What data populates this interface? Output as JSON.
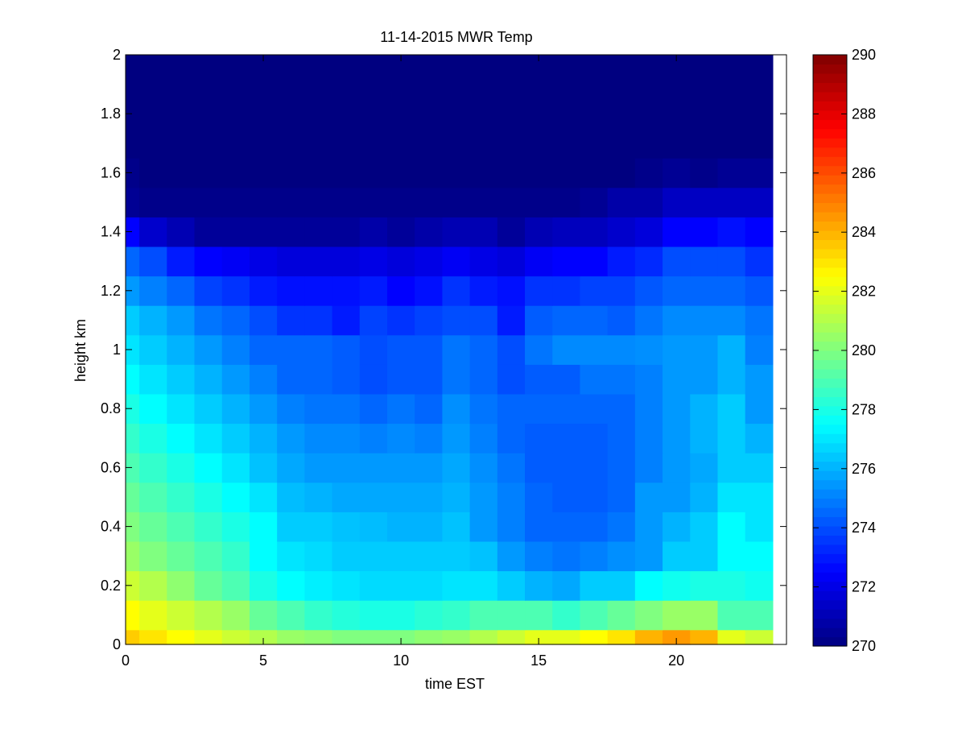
{
  "chart_data": {
    "type": "heatmap",
    "title": "11-14-2015 MWR Temp",
    "xlabel": "time EST",
    "ylabel": "height km",
    "xlim": [
      0,
      24
    ],
    "ylim": [
      0,
      2
    ],
    "x_ticks": [
      0,
      5,
      10,
      15,
      20
    ],
    "x_tick_labels": [
      "0",
      "5",
      "10",
      "15",
      "20"
    ],
    "y_ticks": [
      0,
      0.2,
      0.4,
      0.6,
      0.8,
      1,
      1.2,
      1.4,
      1.6,
      1.8,
      2
    ],
    "y_tick_labels": [
      "0",
      "0.2",
      "0.4",
      "0.6",
      "0.8",
      "1",
      "1.2",
      "1.4",
      "1.6",
      "1.8",
      "2"
    ],
    "colormap": "jet",
    "colorbar": {
      "min": 270,
      "max": 290,
      "ticks": [
        270,
        272,
        274,
        276,
        278,
        280,
        282,
        284,
        286,
        288,
        290
      ],
      "tick_labels": [
        "270",
        "272",
        "274",
        "276",
        "278",
        "280",
        "282",
        "284",
        "286",
        "288",
        "290"
      ]
    },
    "x": [
      0,
      1,
      2,
      3,
      4,
      5,
      6,
      7,
      8,
      9,
      10,
      11,
      12,
      13,
      14,
      15,
      16,
      17,
      18,
      19,
      20,
      21,
      22,
      23
    ],
    "y_centers": [
      0.025,
      0.1,
      0.2,
      0.3,
      0.4,
      0.5,
      0.6,
      0.7,
      0.8,
      0.9,
      1.0,
      1.1,
      1.2,
      1.3,
      1.4,
      1.5,
      1.6,
      1.7,
      1.8,
      1.9
    ],
    "y_edges": [
      0,
      0.05,
      0.15,
      0.25,
      0.35,
      0.45,
      0.55,
      0.65,
      0.75,
      0.85,
      0.95,
      1.05,
      1.15,
      1.25,
      1.35,
      1.45,
      1.55,
      1.65,
      1.75,
      1.85,
      2.0
    ],
    "z": [
      [
        283.5,
        283.0,
        282.5,
        282.0,
        281.5,
        281.0,
        280.5,
        280.3,
        280.0,
        280.0,
        280.0,
        280.3,
        280.5,
        281.0,
        281.5,
        282.0,
        282.0,
        282.5,
        283.0,
        284.0,
        284.5,
        284.0,
        282.0,
        281.5
      ],
      [
        282.5,
        282.0,
        281.5,
        281.0,
        280.5,
        279.5,
        279.0,
        278.5,
        278.2,
        278.0,
        278.0,
        278.3,
        278.5,
        279.0,
        279.0,
        279.0,
        278.5,
        279.0,
        279.5,
        280.0,
        280.5,
        280.5,
        279.0,
        279.0
      ],
      [
        281.5,
        281.0,
        280.3,
        279.5,
        279.0,
        278.0,
        277.5,
        277.2,
        277.0,
        276.8,
        276.8,
        276.8,
        277.0,
        277.0,
        276.5,
        276.0,
        275.8,
        276.5,
        276.5,
        277.5,
        277.8,
        278.0,
        278.0,
        277.8
      ],
      [
        280.5,
        280.0,
        279.5,
        279.0,
        278.5,
        277.5,
        277.0,
        276.8,
        276.5,
        276.5,
        276.5,
        276.5,
        276.5,
        276.3,
        275.5,
        275.0,
        274.8,
        275.0,
        275.3,
        275.5,
        276.5,
        276.5,
        277.5,
        277.5
      ],
      [
        280.0,
        279.5,
        279.0,
        278.5,
        278.0,
        277.5,
        276.5,
        276.5,
        276.3,
        276.2,
        276.0,
        276.0,
        276.3,
        275.5,
        275.0,
        274.5,
        274.5,
        274.5,
        274.8,
        275.5,
        276.0,
        276.5,
        277.5,
        277.0
      ],
      [
        279.5,
        279.0,
        278.5,
        278.0,
        277.5,
        277.0,
        276.2,
        276.0,
        275.8,
        275.8,
        275.8,
        275.8,
        276.0,
        275.5,
        275.0,
        274.5,
        274.3,
        274.3,
        274.5,
        275.5,
        275.5,
        276.0,
        277.0,
        277.0
      ],
      [
        279.0,
        278.5,
        278.0,
        277.5,
        277.0,
        276.3,
        275.8,
        275.5,
        275.5,
        275.5,
        275.5,
        275.5,
        275.8,
        275.3,
        274.8,
        274.3,
        274.3,
        274.3,
        274.5,
        275.0,
        275.5,
        275.8,
        276.5,
        276.5
      ],
      [
        278.5,
        278.0,
        277.5,
        277.0,
        276.5,
        276.0,
        275.5,
        275.2,
        275.2,
        275.0,
        275.2,
        275.0,
        275.5,
        275.0,
        274.5,
        274.3,
        274.3,
        274.3,
        274.5,
        275.0,
        275.5,
        276.0,
        276.5,
        276.0
      ],
      [
        278.0,
        277.5,
        277.0,
        276.5,
        276.0,
        275.5,
        275.0,
        274.8,
        274.8,
        274.5,
        274.8,
        274.5,
        275.3,
        274.8,
        274.5,
        274.5,
        274.5,
        274.5,
        274.5,
        275.0,
        275.5,
        276.0,
        276.5,
        275.5
      ],
      [
        277.5,
        277.0,
        276.5,
        276.0,
        275.5,
        275.0,
        274.5,
        274.5,
        274.3,
        274.0,
        274.2,
        274.2,
        274.8,
        274.5,
        274.0,
        274.3,
        274.3,
        274.8,
        274.8,
        275.0,
        275.5,
        275.5,
        276.0,
        275.5
      ],
      [
        277.0,
        276.5,
        276.0,
        275.5,
        275.0,
        274.5,
        274.5,
        274.5,
        274.3,
        274.0,
        274.2,
        274.2,
        274.8,
        274.5,
        274.0,
        274.8,
        275.2,
        275.2,
        275.2,
        275.3,
        275.5,
        275.5,
        276.0,
        275.0
      ],
      [
        276.5,
        276.0,
        275.5,
        274.8,
        274.5,
        274.0,
        273.5,
        273.5,
        273.0,
        273.8,
        273.5,
        273.8,
        274.0,
        274.0,
        273.0,
        274.3,
        274.5,
        274.5,
        274.3,
        274.8,
        275.2,
        275.2,
        275.2,
        274.8
      ],
      [
        275.5,
        275.0,
        274.5,
        273.8,
        273.5,
        273.0,
        272.8,
        272.8,
        272.8,
        273.0,
        272.5,
        272.8,
        273.5,
        273.0,
        272.8,
        273.5,
        273.5,
        273.8,
        273.8,
        274.2,
        274.5,
        274.5,
        274.5,
        274.2
      ],
      [
        274.5,
        274.0,
        273.0,
        272.5,
        272.3,
        272.0,
        271.8,
        271.8,
        271.8,
        272.0,
        271.8,
        272.0,
        272.3,
        272.0,
        271.8,
        272.3,
        272.5,
        272.5,
        273.0,
        273.3,
        274.0,
        274.0,
        274.0,
        273.5
      ],
      [
        272.5,
        271.5,
        271.0,
        270.5,
        270.5,
        270.5,
        270.5,
        270.5,
        270.5,
        270.8,
        270.5,
        270.8,
        271.0,
        271.0,
        270.5,
        271.0,
        271.2,
        271.2,
        271.5,
        271.8,
        272.5,
        272.5,
        272.8,
        272.5
      ],
      [
        270.4,
        270.2,
        270.2,
        270.2,
        270.2,
        270.2,
        270.2,
        270.2,
        270.2,
        270.2,
        270.2,
        270.2,
        270.2,
        270.2,
        270.2,
        270.2,
        270.2,
        270.4,
        270.8,
        270.8,
        271.3,
        271.3,
        271.3,
        271.3
      ],
      [
        270.2,
        270.0,
        270.0,
        270.0,
        270.0,
        270.0,
        270.0,
        270.0,
        270.0,
        270.0,
        270.0,
        270.0,
        270.0,
        270.0,
        270.0,
        270.0,
        270.0,
        270.0,
        270.0,
        270.2,
        270.4,
        270.2,
        270.4,
        270.4
      ],
      [
        270.0,
        270.0,
        270.0,
        270.0,
        270.0,
        270.0,
        270.0,
        270.0,
        270.0,
        270.0,
        270.0,
        270.0,
        270.0,
        270.0,
        270.0,
        270.0,
        270.0,
        270.0,
        270.0,
        270.0,
        270.0,
        270.0,
        270.0,
        270.0
      ],
      [
        270.0,
        270.0,
        270.0,
        270.0,
        270.0,
        270.0,
        270.0,
        270.0,
        270.0,
        270.0,
        270.0,
        270.0,
        270.0,
        270.0,
        270.0,
        270.0,
        270.0,
        270.0,
        270.0,
        270.0,
        270.0,
        270.0,
        270.0,
        270.0
      ],
      [
        270.0,
        270.0,
        270.0,
        270.0,
        270.0,
        270.0,
        270.0,
        270.0,
        270.0,
        270.0,
        270.0,
        270.0,
        270.0,
        270.0,
        270.0,
        270.0,
        270.0,
        270.0,
        270.0,
        270.0,
        270.0,
        270.0,
        270.0,
        270.0
      ]
    ]
  }
}
